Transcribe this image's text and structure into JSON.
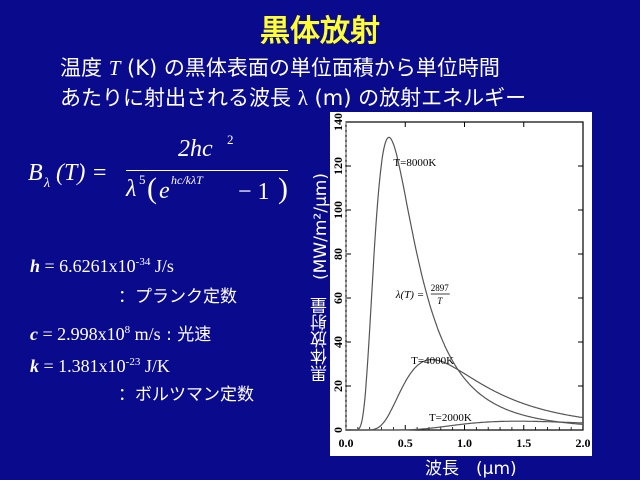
{
  "slide": {
    "title": "黒体放射",
    "subtitle_line1_a": "温度 ",
    "subtitle_line1_T": "T",
    "subtitle_line1_b": " (K) の黒体表面の単位面積から単位時間",
    "subtitle_line2_a": "あたりに射出される波長 ",
    "subtitle_line2_lambda": "λ",
    "subtitle_line2_b": " (m) の放射エネルギー"
  },
  "formula": {
    "B": "B",
    "lambda_sub": "λ",
    "arg": "(T) =",
    "numerator": "2hc",
    "num_sup": "2",
    "denom_lambda": "λ",
    "denom_sup5": "5",
    "denom_e": "e",
    "denom_exp": "hc/kλT",
    "denom_minus": "− 1",
    "paren_open": "(",
    "paren_close": ")"
  },
  "constants": {
    "h_sym": "h",
    "h_val": " = 6.6261x10",
    "h_exp": "-34",
    "h_unit": " J/s",
    "h_desc": "：プランク定数",
    "c_sym": "c",
    "c_val": " = 2.998x10",
    "c_exp": "8",
    "c_unit": " m/s",
    "c_desc": " : 光速",
    "k_sym": "k",
    "k_val": " = 1.381x10",
    "k_exp": "-23",
    "k_unit": " J/K",
    "k_desc": "：ボルツマン定数"
  },
  "axis_labels": {
    "ylabel": "黒体放射量　(MW/m²/μm)",
    "xlabel": "波長　(μm)"
  },
  "chart_data": {
    "type": "line",
    "xlabel": "波長　(μm)",
    "ylabel": "黒体放射量　(MW/m²/μm)",
    "xlim": [
      0.0,
      2.0
    ],
    "ylim": [
      0,
      140
    ],
    "xticks": [
      "0.0",
      "0.5",
      "1.0",
      "1.5",
      "2.0"
    ],
    "yticks": [
      "0",
      "20",
      "40",
      "60",
      "80",
      "100",
      "120",
      "140"
    ],
    "grid": false,
    "series": [
      {
        "name": "T=8000K",
        "T": 8000,
        "peak_x": 0.36,
        "peak_y": 133
      },
      {
        "name": "T=4000K",
        "T": 4000,
        "peak_x": 0.72,
        "peak_y": 32
      },
      {
        "name": "T=2000K",
        "T": 2000,
        "peak_x": 1.45,
        "peak_y": 4
      }
    ],
    "wien_curve": {
      "label_lhs": "λ(T) =",
      "label_num": "2897",
      "label_den": "T",
      "constant": 2897
    }
  }
}
